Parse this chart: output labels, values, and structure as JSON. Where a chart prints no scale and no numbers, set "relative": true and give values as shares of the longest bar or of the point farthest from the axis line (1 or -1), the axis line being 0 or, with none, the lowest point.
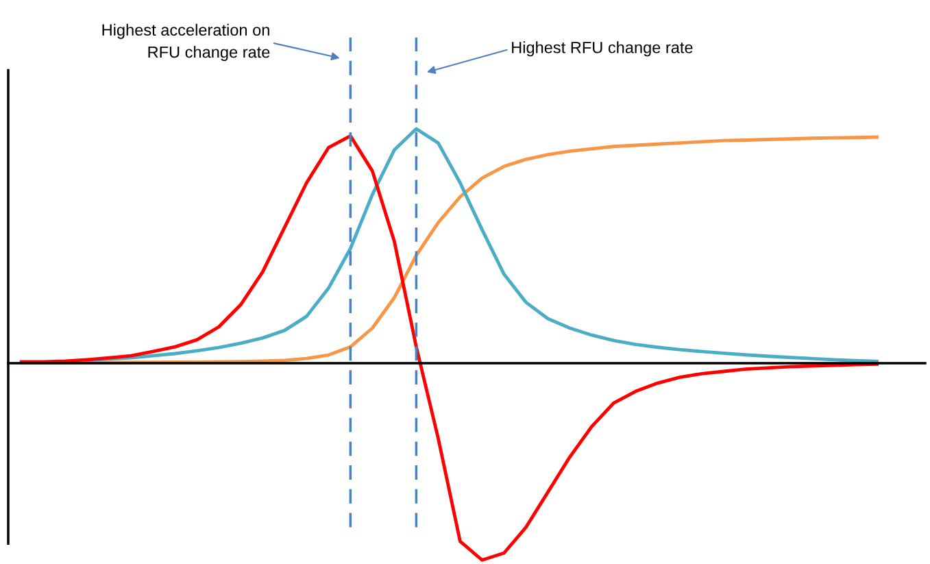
{
  "chart_data": {
    "type": "line",
    "relative": true,
    "grid": false,
    "legend": false,
    "marker": "none",
    "line_style": "solid",
    "categories": [
      null,
      null,
      null,
      null,
      null,
      null,
      null,
      null,
      null,
      null,
      null,
      null,
      null,
      null,
      null,
      null,
      null,
      null,
      null,
      null,
      null,
      null,
      null,
      null,
      null,
      null,
      null,
      null,
      null,
      null,
      null,
      null,
      null,
      null,
      null,
      null,
      null,
      null,
      null,
      null
    ],
    "series": [
      {
        "color": "#f79646",
        "values": [
          0.003,
          0.003,
          0.003,
          0.003,
          0.003,
          0.004,
          0.004,
          0.005,
          0.005,
          0.006,
          0.007,
          0.009,
          0.012,
          0.02,
          0.035,
          0.07,
          0.15,
          0.28,
          0.46,
          0.6,
          0.71,
          0.79,
          0.84,
          0.87,
          0.89,
          0.905,
          0.915,
          0.925,
          0.93,
          0.935,
          0.94,
          0.945,
          0.95,
          0.952,
          0.955,
          0.957,
          0.96,
          0.962,
          0.963,
          0.965
        ]
      },
      {
        "color": "#4bacc6",
        "values": [
          null,
          null,
          null,
          0.012,
          0.018,
          0.023,
          0.032,
          0.041,
          0.053,
          0.067,
          0.085,
          0.108,
          0.14,
          0.2,
          0.32,
          0.49,
          0.72,
          0.91,
          1.0,
          0.94,
          0.77,
          0.57,
          0.38,
          0.26,
          0.19,
          0.15,
          0.12,
          0.097,
          0.08,
          0.068,
          0.058,
          0.05,
          0.043,
          0.036,
          0.03,
          0.025,
          0.02,
          0.015,
          0.011,
          0.008
        ]
      },
      {
        "color": "#ff0000",
        "values": [
          0.006,
          0.006,
          0.009,
          0.015,
          0.023,
          0.032,
          0.05,
          0.07,
          0.1,
          0.155,
          0.25,
          0.39,
          0.58,
          0.77,
          0.92,
          0.97,
          0.82,
          0.52,
          0.07,
          -0.32,
          -0.76,
          -0.84,
          -0.81,
          -0.7,
          -0.55,
          -0.4,
          -0.27,
          -0.17,
          -0.12,
          -0.085,
          -0.06,
          -0.045,
          -0.035,
          -0.025,
          -0.02,
          -0.015,
          -0.012,
          -0.009,
          -0.006,
          -0.004
        ]
      }
    ],
    "annotations": [
      "Highest acceleration on\nRFU change rate",
      "Highest RFU change rate"
    ]
  }
}
